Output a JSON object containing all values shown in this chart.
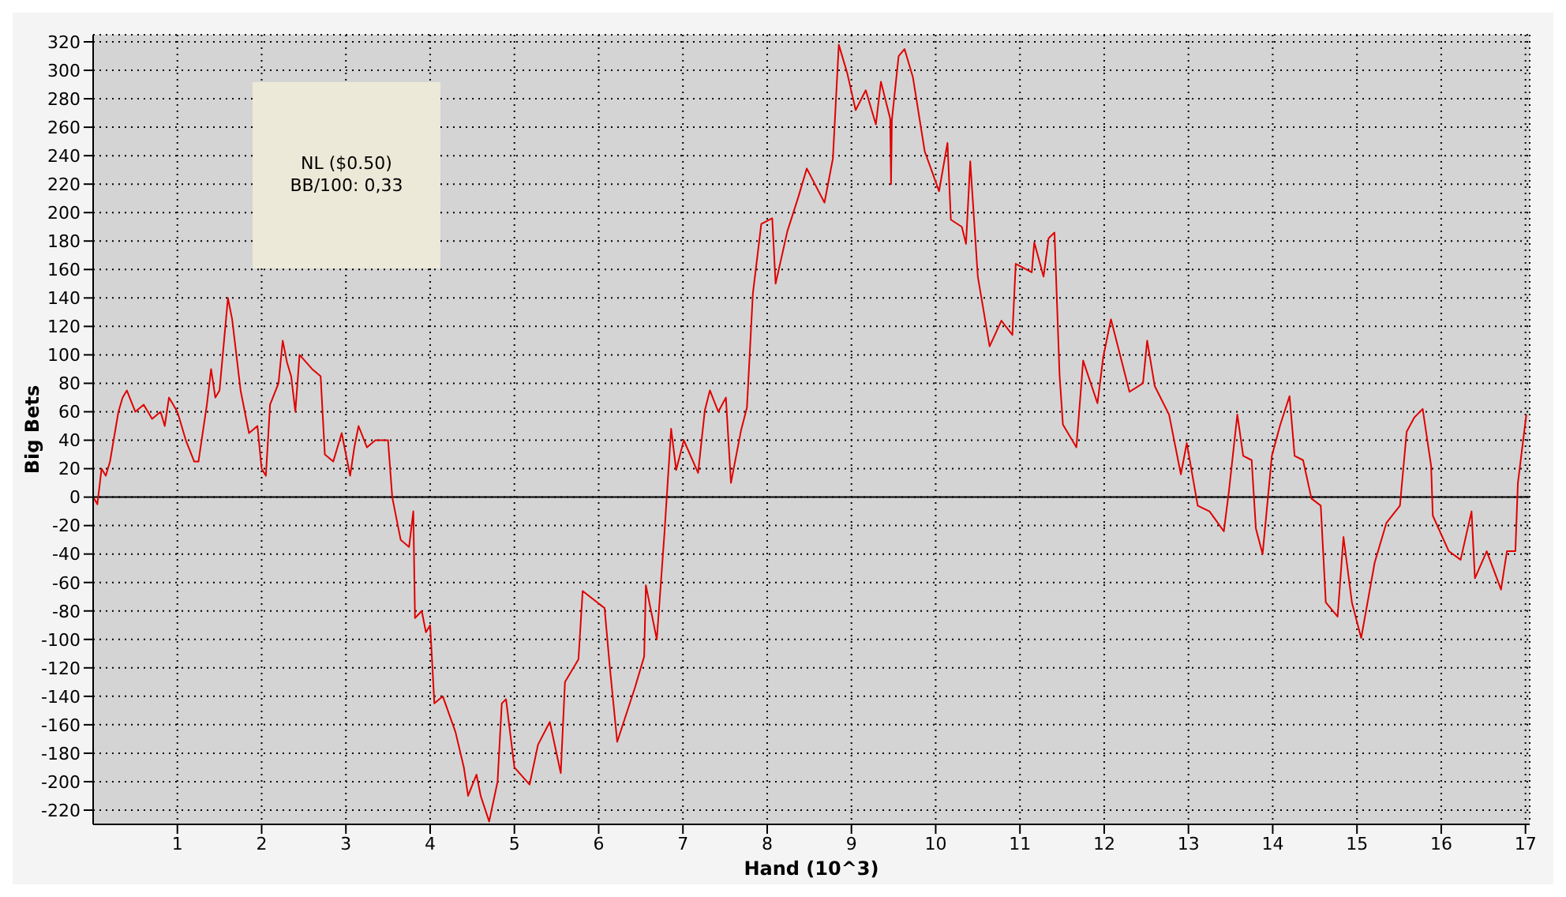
{
  "chart_data": {
    "type": "line",
    "xlabel": "Hand (10^3)",
    "ylabel": "Big Bets",
    "annotations": [
      "NL ($0.50)",
      "BB/100: 0,33"
    ],
    "x": [
      0,
      0.05,
      0.1,
      0.15,
      0.2,
      0.3,
      0.35,
      0.4,
      0.5,
      0.6,
      0.7,
      0.8,
      0.85,
      0.9,
      1.0,
      1.1,
      1.2,
      1.25,
      1.35,
      1.4,
      1.45,
      1.5,
      1.6,
      1.65,
      1.75,
      1.85,
      1.95,
      2.0,
      2.05,
      2.1,
      2.2,
      2.25,
      2.3,
      2.35,
      2.4,
      2.45,
      2.6,
      2.7,
      2.75,
      2.85,
      2.95,
      3.05,
      3.1,
      3.15,
      3.25,
      3.35,
      3.5,
      3.55,
      3.65,
      3.75,
      3.8,
      3.82,
      3.9,
      3.95,
      4.0,
      4.05,
      4.15,
      4.3,
      4.4,
      4.45,
      4.55,
      4.6,
      4.7,
      4.8,
      4.85,
      4.9,
      5.0,
      5.18,
      5.28,
      5.42,
      5.55,
      5.6,
      5.76,
      5.81,
      6.07,
      6.13,
      6.22,
      6.43,
      6.54,
      6.56,
      6.69,
      6.78,
      6.86,
      6.92,
      7.01,
      7.18,
      7.26,
      7.32,
      7.42,
      7.51,
      7.57,
      7.69,
      7.76,
      7.83,
      7.93,
      8.06,
      8.1,
      8.24,
      8.37,
      8.47,
      8.68,
      8.78,
      8.85,
      8.95,
      9.05,
      9.17,
      9.29,
      9.35,
      9.46,
      9.47,
      9.48,
      9.56,
      9.63,
      9.73,
      9.87,
      10.04,
      10.14,
      10.18,
      10.31,
      10.36,
      10.41,
      10.5,
      10.64,
      10.78,
      10.91,
      10.95,
      11.14,
      11.17,
      11.28,
      11.34,
      11.41,
      11.47,
      11.51,
      11.67,
      11.75,
      11.92,
      11.99,
      12.08,
      12.3,
      12.46,
      12.51,
      12.6,
      12.77,
      12.91,
      12.98,
      13.11,
      13.25,
      13.42,
      13.48,
      13.58,
      13.65,
      13.75,
      13.8,
      13.88,
      13.99,
      14.09,
      14.2,
      14.26,
      14.36,
      14.46,
      14.57,
      14.63,
      14.77,
      14.84,
      14.94,
      15.05,
      15.21,
      15.35,
      15.51,
      15.59,
      15.68,
      15.78,
      15.88,
      15.9,
      16.09,
      16.23,
      16.36,
      16.4,
      16.54,
      16.71,
      16.78,
      16.88,
      16.91,
      17.01
    ],
    "values": [
      0,
      -5,
      20,
      15,
      25,
      60,
      70,
      75,
      60,
      65,
      55,
      60,
      50,
      70,
      60,
      40,
      25,
      25,
      65,
      90,
      70,
      75,
      140,
      125,
      75,
      45,
      50,
      20,
      15,
      65,
      80,
      110,
      95,
      85,
      60,
      100,
      90,
      85,
      30,
      25,
      45,
      15,
      35,
      50,
      35,
      40,
      40,
      0,
      -30,
      -35,
      -10,
      -85,
      -80,
      -95,
      -90,
      -145,
      -140,
      -165,
      -190,
      -210,
      -195,
      -210,
      -228,
      -200,
      -145,
      -142,
      -190,
      -202,
      -174,
      -158,
      -194,
      -130,
      -114,
      -66,
      -78,
      -118,
      -172,
      -134,
      -112,
      -62,
      -100,
      -26,
      48,
      19,
      40,
      17,
      61,
      75,
      60,
      70,
      10,
      47,
      63,
      143,
      192,
      196,
      150,
      187,
      211,
      231,
      207,
      238,
      318,
      298,
      272,
      286,
      262,
      292,
      266,
      220,
      265,
      310,
      315,
      295,
      243,
      215,
      249,
      195,
      190,
      178,
      236,
      155,
      106,
      124,
      114,
      164,
      158,
      179,
      155,
      182,
      186,
      86,
      51,
      35,
      96,
      66,
      99,
      125,
      74,
      80,
      110,
      78,
      58,
      16,
      38,
      -6,
      -10,
      -24,
      4,
      58,
      29,
      26,
      -22,
      -40,
      29,
      51,
      71,
      29,
      26,
      -1,
      -6,
      -74,
      -84,
      -28,
      -74,
      -99,
      -46,
      -18,
      -6,
      46,
      56,
      62,
      22,
      -13,
      -38,
      -44,
      -10,
      -57,
      -38,
      -65,
      -38,
      -38,
      10,
      58
    ],
    "color": "#e00000",
    "xlim": [
      0,
      17.05
    ],
    "xticks": [
      1,
      2,
      3,
      4,
      5,
      6,
      7,
      8,
      9,
      10,
      11,
      12,
      13,
      14,
      15,
      16,
      17
    ],
    "ylim": [
      -230,
      325
    ],
    "yticks": [
      -220,
      -200,
      -180,
      -160,
      -140,
      -120,
      -100,
      -80,
      -60,
      -40,
      -20,
      0,
      20,
      40,
      60,
      80,
      100,
      120,
      140,
      160,
      180,
      200,
      220,
      240,
      260,
      280,
      300,
      320
    ],
    "grid": true,
    "ref_lines": [
      {
        "axis": "y",
        "value": 0,
        "color": "#000000"
      }
    ]
  }
}
